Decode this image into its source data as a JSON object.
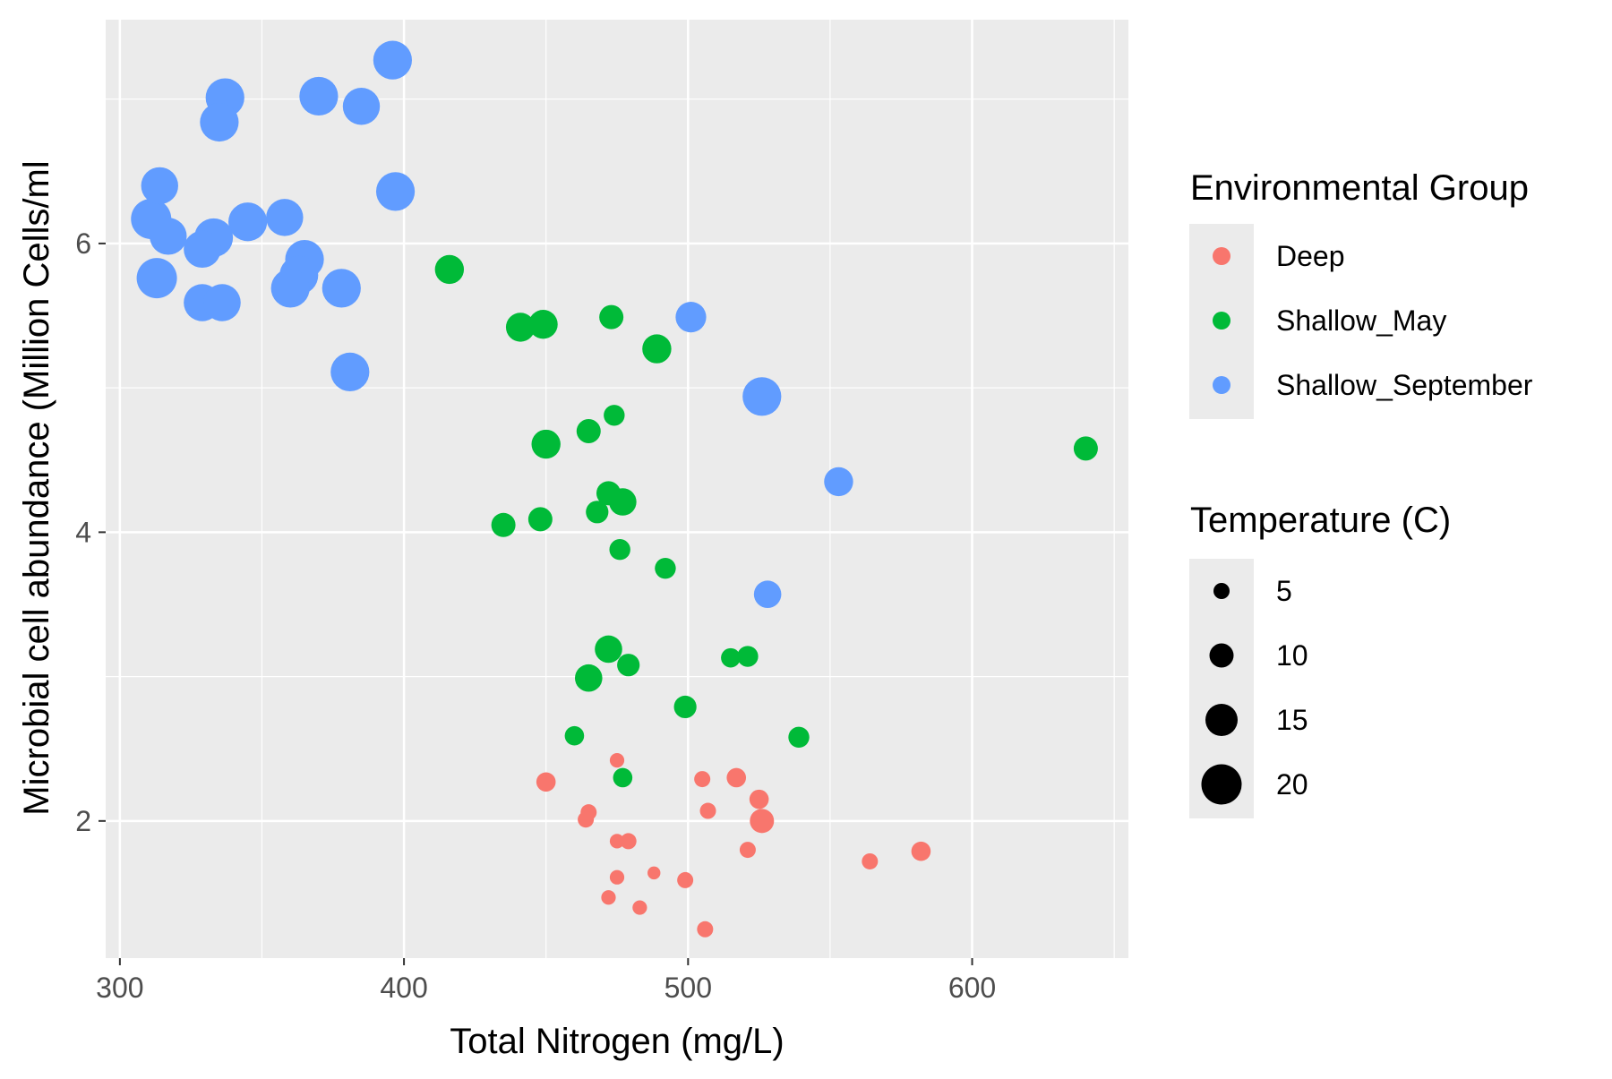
{
  "chart_data": {
    "type": "scatter",
    "xlabel": "Total Nitrogen (mg/L)",
    "ylabel": "Microbial cell abundance (Million Cells/ml",
    "xlim": [
      295,
      655
    ],
    "ylim": [
      1.05,
      7.55
    ],
    "x_ticks": [
      300,
      400,
      500,
      600
    ],
    "y_ticks": [
      2,
      4,
      6
    ],
    "x_tick_labels": [
      "300",
      "400",
      "500",
      "600"
    ],
    "y_tick_labels": [
      "2",
      "4",
      "6"
    ],
    "grid": true,
    "legend_placement": "right",
    "color_legend": {
      "title": "Environmental Group",
      "entries": [
        {
          "label": "Deep",
          "color": "#F8766D"
        },
        {
          "label": "Shallow_May",
          "color": "#00BA38"
        },
        {
          "label": "Shallow_September",
          "color": "#619CFF"
        }
      ]
    },
    "size_legend": {
      "title": "Temperature (C)",
      "entries": [
        {
          "label": "5",
          "value": 5
        },
        {
          "label": "10",
          "value": 10
        },
        {
          "label": "15",
          "value": 15
        },
        {
          "label": "20",
          "value": 20
        }
      ]
    },
    "series": [
      {
        "name": "Deep",
        "color": "#F8766D",
        "points": [
          {
            "x": 475,
            "y": 2.42,
            "t": 4
          },
          {
            "x": 450,
            "y": 2.27,
            "t": 7
          },
          {
            "x": 505,
            "y": 2.29,
            "t": 5
          },
          {
            "x": 517,
            "y": 2.3,
            "t": 7
          },
          {
            "x": 465,
            "y": 2.06,
            "t": 5
          },
          {
            "x": 464,
            "y": 2.01,
            "t": 5
          },
          {
            "x": 507,
            "y": 2.07,
            "t": 5
          },
          {
            "x": 525,
            "y": 2.15,
            "t": 7
          },
          {
            "x": 526,
            "y": 2.0,
            "t": 10
          },
          {
            "x": 475,
            "y": 1.86,
            "t": 4
          },
          {
            "x": 479,
            "y": 1.86,
            "t": 5
          },
          {
            "x": 521,
            "y": 1.8,
            "t": 5
          },
          {
            "x": 564,
            "y": 1.72,
            "t": 5
          },
          {
            "x": 582,
            "y": 1.79,
            "t": 7
          },
          {
            "x": 475,
            "y": 1.61,
            "t": 4
          },
          {
            "x": 488,
            "y": 1.64,
            "t": 3
          },
          {
            "x": 499,
            "y": 1.59,
            "t": 5
          },
          {
            "x": 472,
            "y": 1.47,
            "t": 4
          },
          {
            "x": 483,
            "y": 1.4,
            "t": 4
          },
          {
            "x": 506,
            "y": 1.25,
            "t": 5
          }
        ]
      },
      {
        "name": "Shallow_May",
        "color": "#00BA38",
        "points": [
          {
            "x": 416,
            "y": 5.82,
            "t": 13
          },
          {
            "x": 441,
            "y": 5.42,
            "t": 13
          },
          {
            "x": 449,
            "y": 5.44,
            "t": 13
          },
          {
            "x": 473,
            "y": 5.49,
            "t": 10
          },
          {
            "x": 489,
            "y": 5.27,
            "t": 13
          },
          {
            "x": 474,
            "y": 4.81,
            "t": 8
          },
          {
            "x": 465,
            "y": 4.7,
            "t": 10
          },
          {
            "x": 450,
            "y": 4.61,
            "t": 13
          },
          {
            "x": 640,
            "y": 4.58,
            "t": 10
          },
          {
            "x": 472,
            "y": 4.27,
            "t": 10
          },
          {
            "x": 477,
            "y": 4.21,
            "t": 12
          },
          {
            "x": 468,
            "y": 4.14,
            "t": 9
          },
          {
            "x": 448,
            "y": 4.09,
            "t": 10
          },
          {
            "x": 435,
            "y": 4.05,
            "t": 10
          },
          {
            "x": 476,
            "y": 3.88,
            "t": 8
          },
          {
            "x": 492,
            "y": 3.75,
            "t": 8
          },
          {
            "x": 472,
            "y": 3.19,
            "t": 12
          },
          {
            "x": 479,
            "y": 3.08,
            "t": 9
          },
          {
            "x": 515,
            "y": 3.13,
            "t": 7
          },
          {
            "x": 521,
            "y": 3.14,
            "t": 8
          },
          {
            "x": 465,
            "y": 2.99,
            "t": 12
          },
          {
            "x": 499,
            "y": 2.79,
            "t": 9
          },
          {
            "x": 460,
            "y": 2.59,
            "t": 7
          },
          {
            "x": 539,
            "y": 2.58,
            "t": 8
          },
          {
            "x": 477,
            "y": 2.3,
            "t": 7
          }
        ]
      },
      {
        "name": "Shallow_September",
        "color": "#619CFF",
        "points": [
          {
            "x": 396,
            "y": 7.27,
            "t": 19
          },
          {
            "x": 337,
            "y": 7.01,
            "t": 19
          },
          {
            "x": 370,
            "y": 7.02,
            "t": 19
          },
          {
            "x": 385,
            "y": 6.95,
            "t": 18
          },
          {
            "x": 335,
            "y": 6.84,
            "t": 19
          },
          {
            "x": 314,
            "y": 6.4,
            "t": 18
          },
          {
            "x": 397,
            "y": 6.36,
            "t": 19
          },
          {
            "x": 311,
            "y": 6.17,
            "t": 20
          },
          {
            "x": 345,
            "y": 6.15,
            "t": 19
          },
          {
            "x": 358,
            "y": 6.18,
            "t": 18
          },
          {
            "x": 317,
            "y": 6.05,
            "t": 18
          },
          {
            "x": 333,
            "y": 6.04,
            "t": 19
          },
          {
            "x": 329,
            "y": 5.96,
            "t": 18
          },
          {
            "x": 365,
            "y": 5.89,
            "t": 19
          },
          {
            "x": 363,
            "y": 5.78,
            "t": 19
          },
          {
            "x": 313,
            "y": 5.76,
            "t": 20
          },
          {
            "x": 360,
            "y": 5.69,
            "t": 19
          },
          {
            "x": 378,
            "y": 5.69,
            "t": 19
          },
          {
            "x": 329,
            "y": 5.59,
            "t": 18
          },
          {
            "x": 336,
            "y": 5.59,
            "t": 18
          },
          {
            "x": 501,
            "y": 5.49,
            "t": 14
          },
          {
            "x": 381,
            "y": 5.11,
            "t": 19
          },
          {
            "x": 526,
            "y": 4.94,
            "t": 19
          },
          {
            "x": 553,
            "y": 4.35,
            "t": 13
          },
          {
            "x": 528,
            "y": 3.57,
            "t": 12
          }
        ]
      }
    ]
  }
}
